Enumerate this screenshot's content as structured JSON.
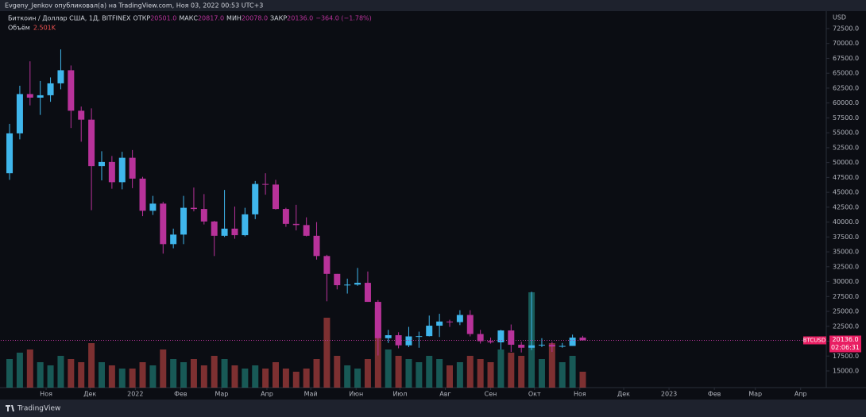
{
  "header": {
    "publisher": "Evgeny_Jenkov опубликовал(а) на TradingView.com, Ноя 03, 2022 00:53 UTC+3"
  },
  "footer": {
    "brand": "TradingView"
  },
  "chart_data": {
    "type": "candlestick",
    "symbol": "Биткоин / Доллар США, 1Д, BITFINEX",
    "ohlc_labels": {
      "open_label": "ОТКР",
      "open": "20501.0",
      "high_label": "МАКС",
      "high": "20817.0",
      "low_label": "МИН",
      "low": "20078.0",
      "close_label": "ЗАКР",
      "close": "20136.0",
      "change": "−364.0 (−1.78%)"
    },
    "volume_label": "Объём",
    "volume_value": "2.501K",
    "currency": "USD",
    "last_price": {
      "value": 20136,
      "label": "20136.0"
    },
    "last_symbol": "BTCUSD",
    "countdown": "02:06:31",
    "up_color": "#3fb6ec",
    "down_color": "#b8329a",
    "vol_up_color": "rgba(38,166,154,0.5)",
    "vol_down_color": "rgba(239,83,80,0.5)",
    "xlim": [
      0,
      564
    ],
    "xticks": [
      {
        "value": 31,
        "label": "Ноя"
      },
      {
        "value": 61,
        "label": "Дек"
      },
      {
        "value": 92,
        "label": "2022"
      },
      {
        "value": 123,
        "label": "Фев"
      },
      {
        "value": 151,
        "label": "Мар"
      },
      {
        "value": 182,
        "label": "Апр"
      },
      {
        "value": 212,
        "label": "Май"
      },
      {
        "value": 243,
        "label": "Июн"
      },
      {
        "value": 273,
        "label": "Июл"
      },
      {
        "value": 304,
        "label": "Авг"
      },
      {
        "value": 335,
        "label": "Сен"
      },
      {
        "value": 365,
        "label": "Окт"
      },
      {
        "value": 396,
        "label": "Ноя"
      },
      {
        "value": 426,
        "label": "Дек"
      },
      {
        "value": 457,
        "label": "2023"
      },
      {
        "value": 488,
        "label": "Фев"
      },
      {
        "value": 516,
        "label": "Мар"
      },
      {
        "value": 547,
        "label": "Апр"
      }
    ],
    "ylim": [
      12200,
      75430
    ],
    "yticks": [
      {
        "value": 15000,
        "label": "15000.0"
      },
      {
        "value": 17500,
        "label": "17500.0"
      },
      {
        "value": 20000,
        "label": "20000.0"
      },
      {
        "value": 22500,
        "label": "22500.0"
      },
      {
        "value": 25000,
        "label": "25000.0"
      },
      {
        "value": 27500,
        "label": "27500.0"
      },
      {
        "value": 30000,
        "label": "30000.0"
      },
      {
        "value": 32500,
        "label": "32500.0"
      },
      {
        "value": 35000,
        "label": "35000.0"
      },
      {
        "value": 37500,
        "label": "37500.0"
      },
      {
        "value": 40000,
        "label": "40000.0"
      },
      {
        "value": 42500,
        "label": "42500.0"
      },
      {
        "value": 45000,
        "label": "45000.0"
      },
      {
        "value": 47500,
        "label": "47500.0"
      },
      {
        "value": 50000,
        "label": "50000.0"
      },
      {
        "value": 52500,
        "label": "52500.0"
      },
      {
        "value": 55000,
        "label": "55000.0"
      },
      {
        "value": 57500,
        "label": "57500.0"
      },
      {
        "value": 60000,
        "label": "60000.0"
      },
      {
        "value": 62500,
        "label": "62500.0"
      },
      {
        "value": 65000,
        "label": "65000.0"
      },
      {
        "value": 67500,
        "label": "67500.0"
      },
      {
        "value": 70000,
        "label": "70000.0"
      },
      {
        "value": 72500,
        "label": "72500.0"
      }
    ],
    "vlim": [
      0,
      40
    ],
    "x": [
      6,
      13,
      20,
      27,
      34,
      41,
      48,
      55,
      62,
      69,
      76,
      83,
      90,
      97,
      104,
      111,
      118,
      125,
      132,
      139,
      146,
      153,
      160,
      167,
      174,
      181,
      188,
      195,
      202,
      209,
      216,
      223,
      230,
      237,
      244,
      251,
      258,
      265,
      272,
      279,
      286,
      293,
      300,
      307,
      314,
      321,
      328,
      335,
      342,
      349,
      356,
      363,
      370,
      377,
      384,
      391,
      398
    ],
    "open": [
      48200,
      54900,
      61500,
      60900,
      61300,
      63300,
      65500,
      58700,
      57200,
      49400,
      50100,
      46700,
      50800,
      47300,
      41900,
      43100,
      36300,
      37900,
      42400,
      42200,
      40100,
      37700,
      38900,
      37800,
      41300,
      46400,
      46300,
      42200,
      39700,
      39500,
      37700,
      34300,
      31300,
      29400,
      29500,
      29800,
      26600,
      20500,
      21000,
      19300,
      20800,
      20850,
      22600,
      23300,
      23200,
      24400,
      21200,
      20000,
      19800,
      21800,
      19400,
      18900,
      19300,
      19400,
      19100,
      19200,
      20600
    ],
    "high": [
      56500,
      62900,
      67000,
      63700,
      64300,
      69000,
      66300,
      59400,
      59100,
      51900,
      51100,
      51800,
      52100,
      47600,
      44400,
      43400,
      38900,
      44400,
      45800,
      44700,
      40200,
      45400,
      42600,
      42400,
      46900,
      48200,
      47100,
      42400,
      42900,
      40800,
      40000,
      34500,
      31300,
      30500,
      32300,
      31700,
      26900,
      21900,
      21500,
      22400,
      21600,
      24300,
      24600,
      23600,
      25200,
      25200,
      21900,
      20600,
      21900,
      22800,
      19900,
      28300,
      20500,
      19900,
      19700,
      21100,
      20900
    ],
    "low": [
      47100,
      53900,
      59600,
      58000,
      60200,
      62300,
      55800,
      53500,
      42000,
      47000,
      45600,
      45500,
      45700,
      41000,
      41200,
      34700,
      35600,
      36300,
      41800,
      39600,
      34300,
      37500,
      37200,
      37600,
      40500,
      44600,
      42100,
      39200,
      38600,
      37600,
      33700,
      26700,
      28700,
      28000,
      29300,
      26600,
      17600,
      19700,
      18800,
      19000,
      18900,
      20800,
      20700,
      22400,
      22700,
      20800,
      19600,
      19600,
      18600,
      18200,
      18100,
      18500,
      19000,
      18200,
      18900,
      19200,
      20100
    ],
    "close": [
      54900,
      61500,
      60900,
      61300,
      63300,
      65500,
      58700,
      57200,
      49400,
      50100,
      46700,
      50800,
      47300,
      41900,
      43100,
      36300,
      37900,
      42400,
      42200,
      40100,
      37700,
      38900,
      37800,
      41300,
      46400,
      46300,
      42200,
      39700,
      39500,
      37700,
      34300,
      31300,
      29400,
      29500,
      29800,
      26600,
      20500,
      21000,
      19300,
      20800,
      20850,
      22600,
      23300,
      23200,
      24400,
      21200,
      20000,
      19800,
      21800,
      19400,
      18900,
      19300,
      19400,
      19100,
      19200,
      20600,
      20136
    ],
    "volume": [
      9,
      11,
      12,
      8,
      7,
      10,
      9,
      8,
      14,
      8,
      7,
      6,
      6,
      8,
      7,
      12,
      9,
      8,
      9,
      7,
      10,
      9,
      7,
      6,
      7,
      6,
      8,
      6,
      5,
      6,
      9,
      22,
      10,
      7,
      6,
      9,
      25,
      12,
      10,
      9,
      8,
      10,
      9,
      7,
      8,
      10,
      9,
      8,
      12,
      11,
      10,
      30,
      9,
      14,
      8,
      10,
      5
    ]
  }
}
